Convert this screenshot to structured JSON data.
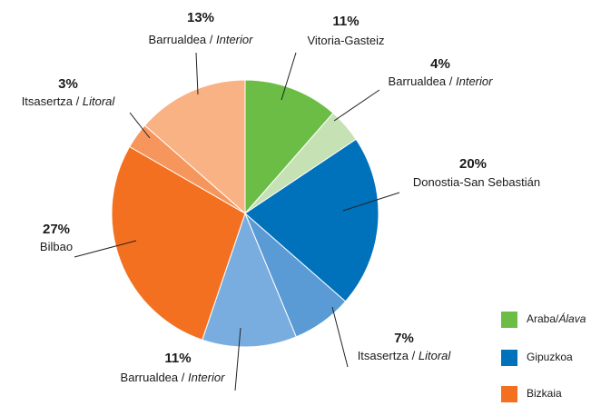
{
  "chart_data": {
    "type": "pie",
    "categories": [
      [
        "Vitoria-Gasteiz"
      ],
      [
        "Barrualdea / ",
        "Interior"
      ],
      [
        "Donostia-San Sebastián"
      ],
      [
        "Itsasertza / ",
        "Litoral"
      ],
      [
        "Barrualdea / ",
        "Interior"
      ],
      [
        "Bilbao"
      ],
      [
        "Itsasertza / ",
        "Litoral"
      ],
      [
        "Barrualdea / ",
        "Interior"
      ]
    ],
    "values": [
      11,
      4,
      20,
      7,
      11,
      27,
      3,
      13
    ],
    "value_labels": [
      "11%",
      "4%",
      "20%",
      "7%",
      "11%",
      "27%",
      "3%",
      "13%"
    ],
    "colors": [
      "#6bbd46",
      "#c6e2b4",
      "#0071bb",
      "#5b9bd5",
      "#7aaddf",
      "#f37021",
      "#f7965c",
      "#f9b284"
    ],
    "legend": [
      {
        "name": [
          "Araba/",
          "Álava"
        ],
        "color": "#6bbd46"
      },
      {
        "name": [
          "Gipuzkoa"
        ],
        "color": "#0071bb"
      },
      {
        "name": [
          "Bizkaia"
        ],
        "color": "#f37021"
      }
    ],
    "legend_position": "bottom-right"
  }
}
